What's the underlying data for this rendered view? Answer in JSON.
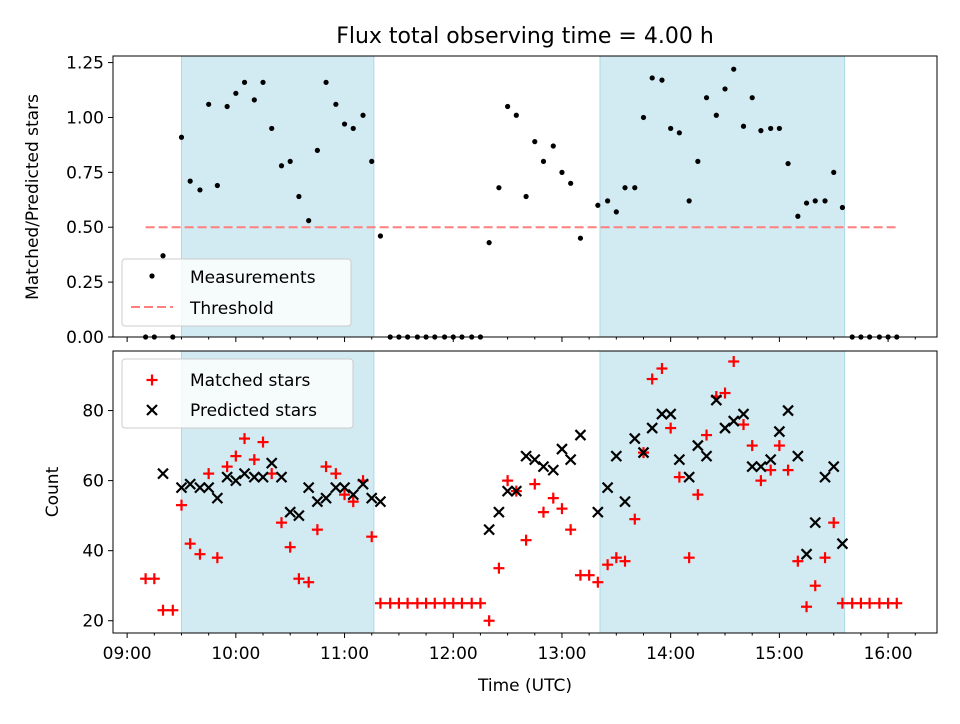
{
  "chart_data": {
    "title": "Flux total observing time = 4.00 h",
    "xlabel": "Time (UTC)",
    "x_tick_labels": [
      "09:00",
      "10:00",
      "11:00",
      "12:00",
      "13:00",
      "14:00",
      "15:00",
      "16:00"
    ],
    "x_tick_hours": [
      9,
      10,
      11,
      12,
      13,
      14,
      15,
      16
    ],
    "xlim_hours": [
      8.87,
      16.45
    ],
    "shaded_intervals_hours": [
      [
        9.5,
        11.27
      ],
      [
        13.35,
        15.6
      ]
    ],
    "colors": {
      "shade": "#add8e6",
      "threshold": "#ff7f7f",
      "matched": "#ff0000",
      "predicted": "#000000",
      "measurement": "#000000"
    },
    "panels": [
      {
        "type": "scatter",
        "ylabel": "Matched/Predicted stars",
        "ylim": [
          0,
          1.28
        ],
        "y_tick_values": [
          0,
          0.25,
          0.5,
          0.75,
          1,
          1.25
        ],
        "y_tick_labels": [
          "0.00",
          "0.25",
          "0.50",
          "0.75",
          "1.00",
          "1.25"
        ],
        "legend_position": "lower-left",
        "legend": [
          {
            "label": "Measurements",
            "marker": "dot"
          },
          {
            "label": "Threshold",
            "marker": "dashed-line"
          }
        ],
        "threshold": {
          "value": 0.5,
          "x_range_hours": [
            9.17,
            16.1
          ]
        },
        "series": [
          {
            "name": "Measurements",
            "marker": "dot",
            "points": [
              [
                9.17,
                0.0
              ],
              [
                9.25,
                0.0
              ],
              [
                9.33,
                0.37
              ],
              [
                9.42,
                0.0
              ],
              [
                9.5,
                0.91
              ],
              [
                9.58,
                0.71
              ],
              [
                9.67,
                0.67
              ],
              [
                9.75,
                1.06
              ],
              [
                9.83,
                0.69
              ],
              [
                9.92,
                1.05
              ],
              [
                10.0,
                1.11
              ],
              [
                10.08,
                1.16
              ],
              [
                10.17,
                1.08
              ],
              [
                10.25,
                1.16
              ],
              [
                10.33,
                0.95
              ],
              [
                10.42,
                0.78
              ],
              [
                10.5,
                0.8
              ],
              [
                10.58,
                0.64
              ],
              [
                10.67,
                0.53
              ],
              [
                10.75,
                0.85
              ],
              [
                10.83,
                1.16
              ],
              [
                10.92,
                1.06
              ],
              [
                11.0,
                0.97
              ],
              [
                11.08,
                0.95
              ],
              [
                11.17,
                1.01
              ],
              [
                11.25,
                0.8
              ],
              [
                11.33,
                0.46
              ],
              [
                11.42,
                0.0
              ],
              [
                11.5,
                0.0
              ],
              [
                11.58,
                0.0
              ],
              [
                11.67,
                0.0
              ],
              [
                11.75,
                0.0
              ],
              [
                11.83,
                0.0
              ],
              [
                11.92,
                0.0
              ],
              [
                12.0,
                0.0
              ],
              [
                12.08,
                0.0
              ],
              [
                12.17,
                0.0
              ],
              [
                12.25,
                0.0
              ],
              [
                12.33,
                0.43
              ],
              [
                12.42,
                0.68
              ],
              [
                12.5,
                1.05
              ],
              [
                12.58,
                1.01
              ],
              [
                12.67,
                0.64
              ],
              [
                12.75,
                0.89
              ],
              [
                12.83,
                0.8
              ],
              [
                12.92,
                0.87
              ],
              [
                13.0,
                0.75
              ],
              [
                13.08,
                0.7
              ],
              [
                13.17,
                0.45
              ],
              [
                13.33,
                0.6
              ],
              [
                13.42,
                0.62
              ],
              [
                13.5,
                0.57
              ],
              [
                13.58,
                0.68
              ],
              [
                13.67,
                0.68
              ],
              [
                13.75,
                1.0
              ],
              [
                13.83,
                1.18
              ],
              [
                13.92,
                1.17
              ],
              [
                14.0,
                0.95
              ],
              [
                14.08,
                0.93
              ],
              [
                14.17,
                0.62
              ],
              [
                14.25,
                0.8
              ],
              [
                14.33,
                1.09
              ],
              [
                14.42,
                1.01
              ],
              [
                14.5,
                1.13
              ],
              [
                14.58,
                1.22
              ],
              [
                14.67,
                0.96
              ],
              [
                14.75,
                1.09
              ],
              [
                14.83,
                0.94
              ],
              [
                14.92,
                0.95
              ],
              [
                15.0,
                0.95
              ],
              [
                15.08,
                0.79
              ],
              [
                15.17,
                0.55
              ],
              [
                15.25,
                0.61
              ],
              [
                15.33,
                0.62
              ],
              [
                15.42,
                0.62
              ],
              [
                15.5,
                0.75
              ],
              [
                15.58,
                0.59
              ],
              [
                15.67,
                0.0
              ],
              [
                15.75,
                0.0
              ],
              [
                15.83,
                0.0
              ],
              [
                15.92,
                0.0
              ],
              [
                16.0,
                0.0
              ],
              [
                16.08,
                0.0
              ]
            ]
          }
        ]
      },
      {
        "type": "scatter",
        "ylabel": "Count",
        "ylim": [
          16.5,
          97
        ],
        "y_tick_values": [
          20,
          40,
          60,
          80
        ],
        "y_tick_labels": [
          "20",
          "40",
          "60",
          "80"
        ],
        "legend_position": "upper-left",
        "legend": [
          {
            "label": "Matched stars",
            "marker": "plus"
          },
          {
            "label": "Predicted stars",
            "marker": "x"
          }
        ],
        "series": [
          {
            "name": "Matched stars",
            "marker": "plus",
            "points": [
              [
                9.17,
                32
              ],
              [
                9.25,
                32
              ],
              [
                9.33,
                23
              ],
              [
                9.42,
                23
              ],
              [
                9.5,
                53
              ],
              [
                9.58,
                42
              ],
              [
                9.67,
                39
              ],
              [
                9.75,
                62
              ],
              [
                9.83,
                38
              ],
              [
                9.92,
                64
              ],
              [
                10.0,
                67
              ],
              [
                10.08,
                72
              ],
              [
                10.17,
                66
              ],
              [
                10.25,
                71
              ],
              [
                10.33,
                62
              ],
              [
                10.42,
                48
              ],
              [
                10.5,
                41
              ],
              [
                10.58,
                32
              ],
              [
                10.67,
                31
              ],
              [
                10.75,
                46
              ],
              [
                10.83,
                64
              ],
              [
                10.92,
                62
              ],
              [
                11.0,
                56
              ],
              [
                11.08,
                54
              ],
              [
                11.17,
                60
              ],
              [
                11.25,
                44
              ],
              [
                11.33,
                25
              ],
              [
                11.42,
                25
              ],
              [
                11.5,
                25
              ],
              [
                11.58,
                25
              ],
              [
                11.67,
                25
              ],
              [
                11.75,
                25
              ],
              [
                11.83,
                25
              ],
              [
                11.92,
                25
              ],
              [
                12.0,
                25
              ],
              [
                12.08,
                25
              ],
              [
                12.17,
                25
              ],
              [
                12.25,
                25
              ],
              [
                12.33,
                20
              ],
              [
                12.42,
                35
              ],
              [
                12.5,
                60
              ],
              [
                12.58,
                57
              ],
              [
                12.67,
                43
              ],
              [
                12.75,
                59
              ],
              [
                12.83,
                51
              ],
              [
                12.92,
                55
              ],
              [
                13.0,
                52
              ],
              [
                13.08,
                46
              ],
              [
                13.17,
                33
              ],
              [
                13.25,
                33
              ],
              [
                13.33,
                31
              ],
              [
                13.42,
                36
              ],
              [
                13.5,
                38
              ],
              [
                13.58,
                37
              ],
              [
                13.67,
                49
              ],
              [
                13.75,
                68
              ],
              [
                13.83,
                89
              ],
              [
                13.92,
                92
              ],
              [
                14.0,
                75
              ],
              [
                14.08,
                61
              ],
              [
                14.17,
                38
              ],
              [
                14.25,
                56
              ],
              [
                14.33,
                73
              ],
              [
                14.42,
                84
              ],
              [
                14.5,
                85
              ],
              [
                14.58,
                94
              ],
              [
                14.67,
                76
              ],
              [
                14.75,
                70
              ],
              [
                14.83,
                60
              ],
              [
                14.92,
                63
              ],
              [
                15.0,
                70
              ],
              [
                15.08,
                63
              ],
              [
                15.17,
                37
              ],
              [
                15.25,
                24
              ],
              [
                15.33,
                30
              ],
              [
                15.42,
                38
              ],
              [
                15.5,
                48
              ],
              [
                15.58,
                25
              ],
              [
                15.67,
                25
              ],
              [
                15.75,
                25
              ],
              [
                15.83,
                25
              ],
              [
                15.92,
                25
              ],
              [
                16.0,
                25
              ],
              [
                16.08,
                25
              ]
            ]
          },
          {
            "name": "Predicted stars",
            "marker": "x",
            "points": [
              [
                9.33,
                62
              ],
              [
                9.5,
                58
              ],
              [
                9.58,
                59
              ],
              [
                9.67,
                58
              ],
              [
                9.75,
                58
              ],
              [
                9.83,
                55
              ],
              [
                9.92,
                61
              ],
              [
                10.0,
                60
              ],
              [
                10.08,
                62
              ],
              [
                10.17,
                61
              ],
              [
                10.25,
                61
              ],
              [
                10.33,
                65
              ],
              [
                10.42,
                61
              ],
              [
                10.5,
                51
              ],
              [
                10.58,
                50
              ],
              [
                10.67,
                58
              ],
              [
                10.75,
                54
              ],
              [
                10.83,
                55
              ],
              [
                10.92,
                58
              ],
              [
                11.0,
                58
              ],
              [
                11.08,
                56
              ],
              [
                11.17,
                59
              ],
              [
                11.25,
                55
              ],
              [
                11.33,
                54
              ],
              [
                12.33,
                46
              ],
              [
                12.42,
                51
              ],
              [
                12.5,
                57
              ],
              [
                12.58,
                57
              ],
              [
                12.67,
                67
              ],
              [
                12.75,
                66
              ],
              [
                12.83,
                64
              ],
              [
                12.92,
                63
              ],
              [
                13.0,
                69
              ],
              [
                13.08,
                66
              ],
              [
                13.17,
                73
              ],
              [
                13.33,
                51
              ],
              [
                13.42,
                58
              ],
              [
                13.5,
                67
              ],
              [
                13.58,
                54
              ],
              [
                13.67,
                72
              ],
              [
                13.75,
                68
              ],
              [
                13.83,
                75
              ],
              [
                13.92,
                79
              ],
              [
                14.0,
                79
              ],
              [
                14.08,
                66
              ],
              [
                14.17,
                61
              ],
              [
                14.25,
                70
              ],
              [
                14.33,
                67
              ],
              [
                14.42,
                83
              ],
              [
                14.5,
                75
              ],
              [
                14.58,
                77
              ],
              [
                14.67,
                79
              ],
              [
                14.75,
                64
              ],
              [
                14.83,
                64
              ],
              [
                14.92,
                66
              ],
              [
                15.0,
                74
              ],
              [
                15.08,
                80
              ],
              [
                15.17,
                67
              ],
              [
                15.25,
                39
              ],
              [
                15.33,
                48
              ],
              [
                15.42,
                61
              ],
              [
                15.5,
                64
              ],
              [
                15.58,
                42
              ]
            ]
          }
        ]
      }
    ]
  }
}
